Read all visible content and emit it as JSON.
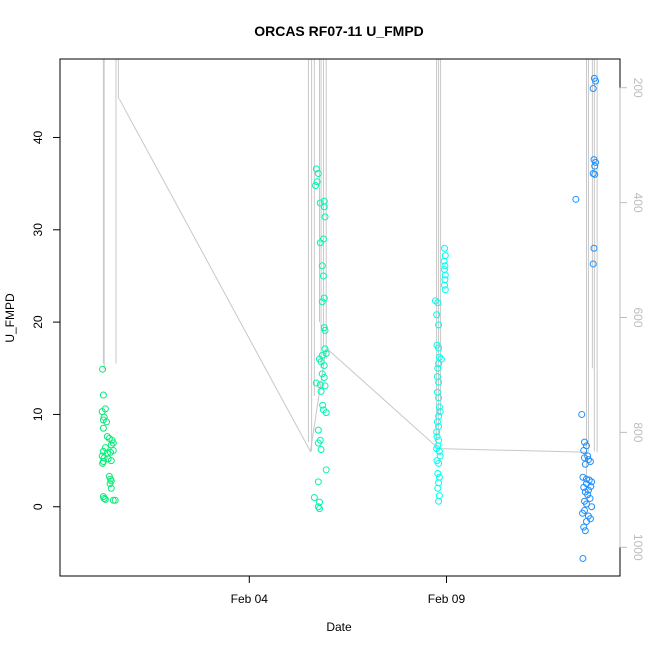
{
  "chart_data": {
    "type": "scatter",
    "title": "ORCAS RF07-11 U_FMPD",
    "xlabel": "Date",
    "ylabel": "U_FMPD",
    "x_ticks": [
      {
        "day": 4,
        "label": "Feb 04"
      },
      {
        "day": 9,
        "label": "Feb 09"
      }
    ],
    "xlim_days": [
      -0.8,
      13.4
    ],
    "ylim": [
      -7.5,
      48.5
    ],
    "y_ticks": [
      0,
      10,
      20,
      30,
      40
    ],
    "right_axis": {
      "label_color": "#bdbdbd",
      "ylim": [
        1050,
        150
      ],
      "ticks": [
        200,
        400,
        600,
        800,
        1000
      ]
    },
    "grid": false,
    "series": [
      {
        "color": "#00ee76",
        "points": [
          [
            0.28,
            14.9
          ],
          [
            0.3,
            12.1
          ],
          [
            0.27,
            10.3
          ],
          [
            0.32,
            9.7
          ],
          [
            0.35,
            10.6
          ],
          [
            0.3,
            9.4
          ],
          [
            0.38,
            9.2
          ],
          [
            0.3,
            8.5
          ],
          [
            0.4,
            7.6
          ],
          [
            0.45,
            7.4
          ],
          [
            0.52,
            7.2
          ],
          [
            0.55,
            6.9
          ],
          [
            0.5,
            6.7
          ],
          [
            0.35,
            6.4
          ],
          [
            0.3,
            6.0
          ],
          [
            0.4,
            5.8
          ],
          [
            0.48,
            5.9
          ],
          [
            0.55,
            6.1
          ],
          [
            0.27,
            5.5
          ],
          [
            0.32,
            5.3
          ],
          [
            0.42,
            5.2
          ],
          [
            0.5,
            5.0
          ],
          [
            0.3,
            4.9
          ],
          [
            0.28,
            4.7
          ],
          [
            0.45,
            3.3
          ],
          [
            0.48,
            3.0
          ],
          [
            0.5,
            2.8
          ],
          [
            0.47,
            2.5
          ],
          [
            0.5,
            2.0
          ],
          [
            0.3,
            1.1
          ],
          [
            0.32,
            0.9
          ],
          [
            0.35,
            0.8
          ],
          [
            0.55,
            0.7
          ],
          [
            0.6,
            0.7
          ]
        ]
      },
      {
        "color": "#00f5b0",
        "points": [
          [
            5.7,
            36.6
          ],
          [
            5.75,
            36.1
          ],
          [
            5.72,
            35.2
          ],
          [
            5.68,
            34.8
          ],
          [
            5.9,
            33.1
          ],
          [
            5.8,
            32.9
          ],
          [
            5.9,
            32.5
          ],
          [
            5.92,
            31.4
          ],
          [
            5.88,
            29.0
          ],
          [
            5.8,
            28.6
          ],
          [
            5.85,
            26.1
          ],
          [
            5.88,
            25.0
          ],
          [
            5.9,
            22.6
          ],
          [
            5.85,
            22.2
          ],
          [
            5.9,
            19.4
          ],
          [
            5.92,
            19.1
          ],
          [
            5.92,
            17.1
          ],
          [
            5.85,
            16.4
          ],
          [
            5.95,
            16.6
          ],
          [
            5.78,
            16.0
          ],
          [
            5.82,
            15.7
          ],
          [
            5.9,
            15.3
          ],
          [
            5.85,
            14.4
          ],
          [
            5.9,
            14.0
          ],
          [
            5.7,
            13.4
          ],
          [
            5.8,
            13.2
          ],
          [
            5.92,
            13.1
          ],
          [
            5.82,
            12.5
          ],
          [
            5.86,
            11.0
          ],
          [
            5.88,
            10.5
          ],
          [
            5.95,
            10.2
          ],
          [
            5.75,
            8.3
          ],
          [
            5.8,
            7.2
          ],
          [
            5.75,
            6.9
          ],
          [
            5.82,
            6.2
          ],
          [
            5.95,
            4.0
          ],
          [
            5.75,
            2.7
          ],
          [
            5.65,
            1.0
          ],
          [
            5.78,
            0.5
          ],
          [
            5.75,
            0.0
          ],
          [
            5.78,
            -0.2
          ]
        ]
      },
      {
        "color": "#00ffee",
        "points": [
          [
            8.95,
            28.0
          ],
          [
            8.97,
            27.2
          ],
          [
            8.94,
            26.6
          ],
          [
            8.96,
            26.1
          ],
          [
            8.95,
            25.7
          ],
          [
            8.97,
            25.1
          ],
          [
            8.96,
            24.6
          ],
          [
            8.95,
            24.0
          ],
          [
            8.97,
            23.5
          ],
          [
            8.72,
            22.3
          ],
          [
            8.78,
            22.1
          ],
          [
            8.75,
            20.8
          ],
          [
            8.8,
            19.7
          ],
          [
            8.76,
            17.5
          ],
          [
            8.8,
            17.2
          ],
          [
            8.82,
            16.2
          ],
          [
            8.87,
            16.0
          ],
          [
            8.8,
            15.5
          ],
          [
            8.78,
            15.0
          ],
          [
            8.77,
            14.1
          ],
          [
            8.8,
            13.5
          ],
          [
            8.77,
            12.4
          ],
          [
            8.8,
            11.8
          ],
          [
            8.82,
            10.8
          ],
          [
            8.84,
            10.3
          ],
          [
            8.8,
            9.8
          ],
          [
            8.77,
            9.2
          ],
          [
            8.8,
            8.7
          ],
          [
            8.75,
            8.1
          ],
          [
            8.76,
            7.6
          ],
          [
            8.8,
            7.2
          ],
          [
            8.78,
            6.6
          ],
          [
            8.75,
            6.3
          ],
          [
            8.82,
            6.0
          ],
          [
            8.84,
            5.5
          ],
          [
            8.76,
            5.0
          ],
          [
            8.8,
            4.7
          ],
          [
            8.78,
            3.6
          ],
          [
            8.82,
            3.2
          ],
          [
            8.8,
            2.6
          ],
          [
            8.78,
            2.0
          ],
          [
            8.82,
            1.2
          ],
          [
            8.8,
            0.6
          ]
        ]
      },
      {
        "color": "#1e90ff",
        "points": [
          [
            12.75,
            46.4
          ],
          [
            12.78,
            46.1
          ],
          [
            12.72,
            45.3
          ],
          [
            12.74,
            37.6
          ],
          [
            12.78,
            37.3
          ],
          [
            12.76,
            36.9
          ],
          [
            12.72,
            36.1
          ],
          [
            12.76,
            36.0
          ],
          [
            12.28,
            33.3
          ],
          [
            12.74,
            28.0
          ],
          [
            12.72,
            26.3
          ],
          [
            12.43,
            10.0
          ],
          [
            12.5,
            7.0
          ],
          [
            12.55,
            6.6
          ],
          [
            12.48,
            6.1
          ],
          [
            12.58,
            5.5
          ],
          [
            12.5,
            5.3
          ],
          [
            12.6,
            5.1
          ],
          [
            12.65,
            4.9
          ],
          [
            12.52,
            4.6
          ],
          [
            12.46,
            3.2
          ],
          [
            12.55,
            3.0
          ],
          [
            12.62,
            2.9
          ],
          [
            12.68,
            2.7
          ],
          [
            12.55,
            2.5
          ],
          [
            12.66,
            2.2
          ],
          [
            12.48,
            2.1
          ],
          [
            12.6,
            1.8
          ],
          [
            12.52,
            1.6
          ],
          [
            12.58,
            1.3
          ],
          [
            12.64,
            0.9
          ],
          [
            12.5,
            0.6
          ],
          [
            12.55,
            0.3
          ],
          [
            12.68,
            0.0
          ],
          [
            12.5,
            -0.4
          ],
          [
            12.45,
            -0.7
          ],
          [
            12.6,
            -1.0
          ],
          [
            12.65,
            -1.3
          ],
          [
            12.55,
            -1.6
          ],
          [
            12.48,
            -2.2
          ],
          [
            12.52,
            -2.6
          ],
          [
            12.46,
            -5.6
          ]
        ]
      }
    ],
    "pressure_trace": {
      "color": "#c8c8c8",
      "connectors": [
        [
          0.7,
          44.2
        ],
        [
          5.55,
          6.0
        ],
        [
          5.95,
          17.2
        ],
        [
          8.8,
          6.3
        ],
        [
          12.6,
          5.9
        ]
      ],
      "spikes": [
        {
          "day": 0.3,
          "y": 15.5
        },
        {
          "day": 0.32,
          "y": 14.8
        },
        {
          "day": 0.62,
          "y": 15.5
        },
        {
          "day": 0.68,
          "y": 44.2
        },
        {
          "day": 5.5,
          "y": 7.0
        },
        {
          "day": 5.58,
          "y": 6.0
        },
        {
          "day": 5.65,
          "y": 12.0
        },
        {
          "day": 5.78,
          "y": 20.0
        },
        {
          "day": 5.82,
          "y": 15.0
        },
        {
          "day": 5.88,
          "y": 17.2
        },
        {
          "day": 5.95,
          "y": 16.0
        },
        {
          "day": 8.75,
          "y": 6.3
        },
        {
          "day": 8.8,
          "y": 8.0
        },
        {
          "day": 8.85,
          "y": 10.0
        },
        {
          "day": 12.55,
          "y": 3.0
        },
        {
          "day": 12.6,
          "y": 6.0
        },
        {
          "day": 12.7,
          "y": 15.0
        },
        {
          "day": 12.75,
          "y": 6.0
        },
        {
          "day": 12.82,
          "y": 5.9
        }
      ]
    }
  }
}
